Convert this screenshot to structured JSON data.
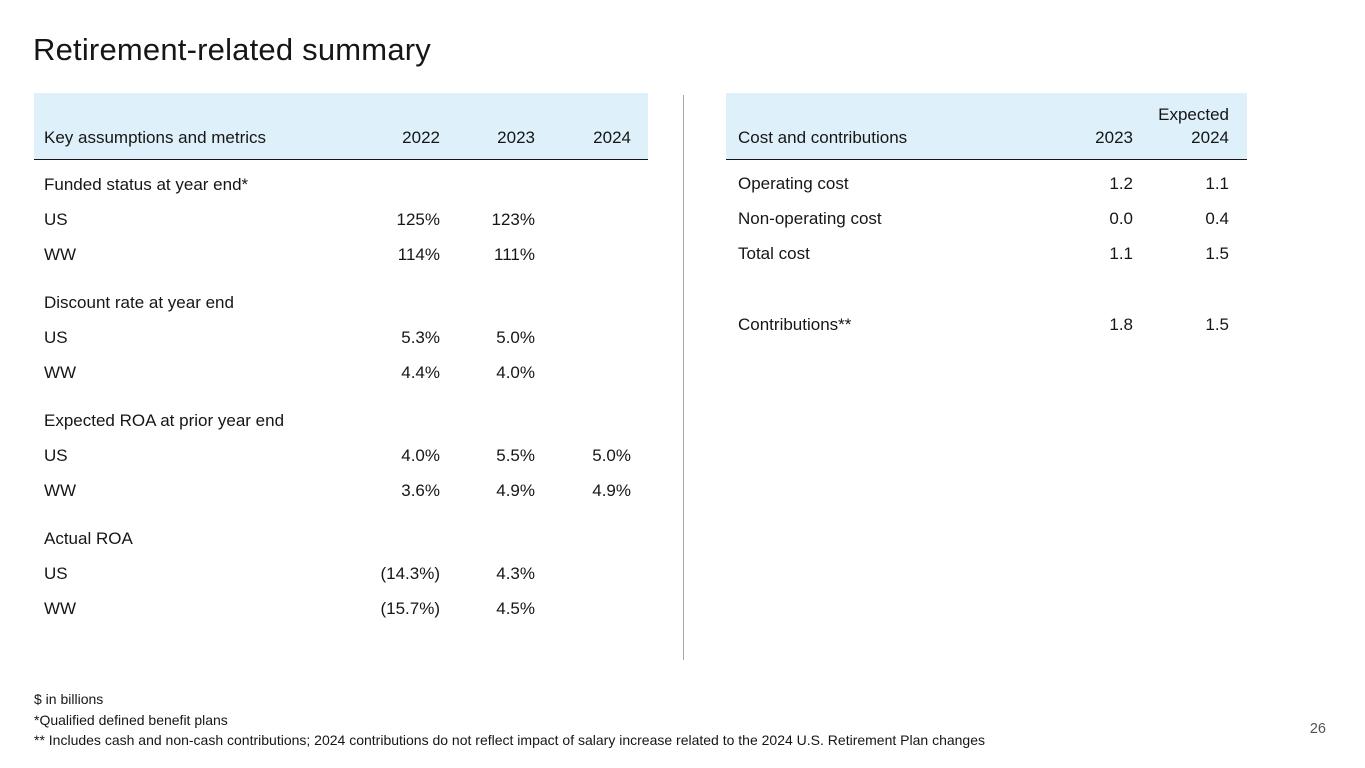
{
  "slide": {
    "title": "Retirement-related summary",
    "page_number": "26"
  },
  "left_table": {
    "header": [
      "Key assumptions and metrics",
      "2022",
      "2023",
      "2024"
    ],
    "sections": [
      {
        "label": "Funded status at year end*",
        "rows": [
          [
            "US",
            "125%",
            "123%",
            ""
          ],
          [
            "WW",
            "114%",
            "111%",
            ""
          ]
        ]
      },
      {
        "label": "Discount rate at year end",
        "rows": [
          [
            "US",
            "5.3%",
            "5.0%",
            ""
          ],
          [
            "WW",
            "4.4%",
            "4.0%",
            ""
          ]
        ]
      },
      {
        "label": "Expected ROA at prior year end",
        "rows": [
          [
            "US",
            "4.0%",
            "5.5%",
            "5.0%"
          ],
          [
            "WW",
            "3.6%",
            "4.9%",
            "4.9%"
          ]
        ]
      },
      {
        "label": "Actual ROA",
        "rows": [
          [
            "US",
            "(14.3%)",
            "4.3%",
            ""
          ],
          [
            "WW",
            "(15.7%)",
            "4.5%",
            ""
          ]
        ]
      }
    ]
  },
  "right_table": {
    "super_header": "Expected",
    "header": [
      "Cost and contributions",
      "2023",
      "2024"
    ],
    "rows": [
      [
        "Operating cost",
        "1.2",
        "1.1"
      ],
      [
        "Non-operating cost",
        "0.0",
        "0.4"
      ],
      [
        "Total cost",
        "1.1",
        "1.5"
      ]
    ],
    "spaced_rows": [
      [
        "Contributions**",
        "1.8",
        "1.5"
      ]
    ]
  },
  "footnotes": [
    "$ in billions",
    "*Qualified defined benefit plans",
    "** Includes cash and non-cash contributions; 2024 contributions do not reflect impact of salary increase related to the 2024 U.S. Retirement Plan changes"
  ],
  "colors": {
    "text": "#161616",
    "header_bg": "#def0fa",
    "divider": "#a8a8a8",
    "header_rule": "#161616",
    "page_number": "#545454"
  }
}
